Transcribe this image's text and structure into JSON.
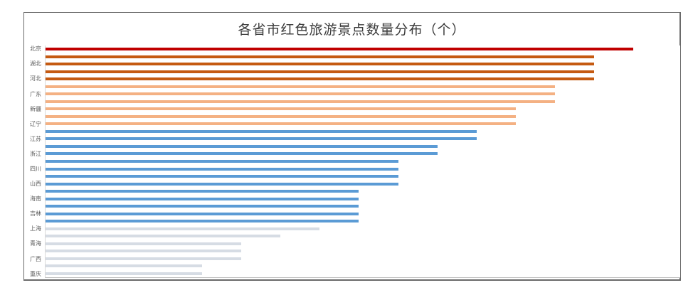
{
  "chart_data": {
    "type": "bar",
    "orientation": "horizontal",
    "title": "各省市红色旅游景点数量分布（个）",
    "xlabel": "",
    "ylabel": "",
    "xlim": [
      0,
      16.2
    ],
    "grid": false,
    "legend": false,
    "sort": "descending",
    "note": "31 bars; a y-axis label is shown for every other bar only",
    "palette": {
      "red": "#c00000",
      "dark_orange": "#c55a11",
      "light_orange": "#f4b183",
      "blue": "#5b9bd5",
      "gray": "#d6dce4"
    },
    "bars": [
      {
        "label": "北京",
        "value": 15,
        "color": "red"
      },
      {
        "label": "",
        "value": 14,
        "color": "dark_orange"
      },
      {
        "label": "湖北",
        "value": 14,
        "color": "dark_orange"
      },
      {
        "label": "",
        "value": 14,
        "color": "dark_orange"
      },
      {
        "label": "河北",
        "value": 14,
        "color": "dark_orange"
      },
      {
        "label": "",
        "value": 13,
        "color": "light_orange"
      },
      {
        "label": "广东",
        "value": 13,
        "color": "light_orange"
      },
      {
        "label": "",
        "value": 13,
        "color": "light_orange"
      },
      {
        "label": "新疆",
        "value": 12,
        "color": "light_orange"
      },
      {
        "label": "",
        "value": 12,
        "color": "light_orange"
      },
      {
        "label": "辽宁",
        "value": 12,
        "color": "light_orange"
      },
      {
        "label": "",
        "value": 11,
        "color": "blue"
      },
      {
        "label": "江苏",
        "value": 11,
        "color": "blue"
      },
      {
        "label": "",
        "value": 10,
        "color": "blue"
      },
      {
        "label": "浙江",
        "value": 10,
        "color": "blue"
      },
      {
        "label": "",
        "value": 9,
        "color": "blue"
      },
      {
        "label": "四川",
        "value": 9,
        "color": "blue"
      },
      {
        "label": "",
        "value": 9,
        "color": "blue"
      },
      {
        "label": "山西",
        "value": 9,
        "color": "blue"
      },
      {
        "label": "",
        "value": 8,
        "color": "blue"
      },
      {
        "label": "海南",
        "value": 8,
        "color": "blue"
      },
      {
        "label": "",
        "value": 8,
        "color": "blue"
      },
      {
        "label": "吉林",
        "value": 8,
        "color": "blue"
      },
      {
        "label": "",
        "value": 8,
        "color": "blue"
      },
      {
        "label": "上海",
        "value": 7,
        "color": "gray"
      },
      {
        "label": "",
        "value": 6,
        "color": "gray"
      },
      {
        "label": "青海",
        "value": 5,
        "color": "gray"
      },
      {
        "label": "",
        "value": 5,
        "color": "gray"
      },
      {
        "label": "广西",
        "value": 5,
        "color": "gray"
      },
      {
        "label": "",
        "value": 4,
        "color": "gray"
      },
      {
        "label": "重庆",
        "value": 4,
        "color": "gray"
      }
    ]
  }
}
